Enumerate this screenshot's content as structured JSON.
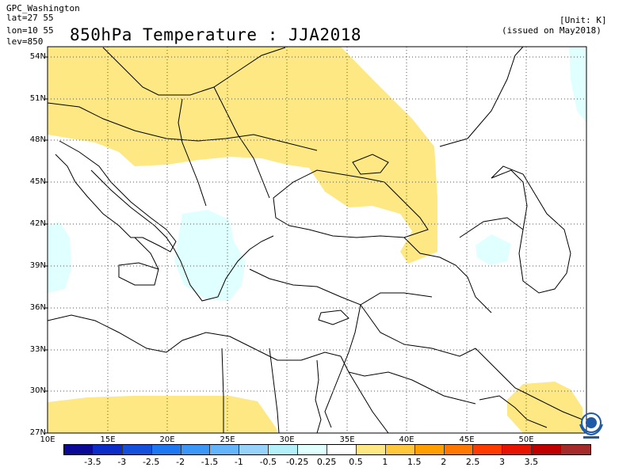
{
  "header": {
    "source": "GPC_Washington",
    "lat_range": "lat=27 55",
    "lon_range": "lon=10 55",
    "level": "lev=850",
    "unit": "[Unit: K]",
    "issued": "(issued on May2018)"
  },
  "title": "850hPa Temperature : JJA2018",
  "map": {
    "lat_ticks": [
      "54N",
      "51N",
      "48N",
      "45N",
      "42N",
      "39N",
      "36N",
      "33N",
      "30N",
      "27N"
    ],
    "lon_ticks": [
      "10E",
      "15E",
      "20E",
      "25E",
      "30E",
      "35E",
      "40E",
      "45E",
      "50E"
    ],
    "lat_extent": [
      27,
      55
    ],
    "lon_extent": [
      10,
      55
    ],
    "gridlines": "dotted",
    "shaded_regions": [
      {
        "category": "0.25 to 0.5",
        "color": "#fde883",
        "area": "Central/Eastern Europe to Caspian"
      },
      {
        "category": "0.25 to 0.5",
        "color": "#fde883",
        "area": "North Africa (Libya/Egypt)"
      },
      {
        "category": "0.25 to 0.5",
        "color": "#fde883",
        "area": "Persian Gulf"
      },
      {
        "category": "-0.5 to -0.25",
        "color": "#e0ffff",
        "area": "Greece / Aegean"
      },
      {
        "category": "-0.5 to -0.25",
        "color": "#e0ffff",
        "area": "Sardinia"
      },
      {
        "category": "-0.5 to -0.25",
        "color": "#e0ffff",
        "area": "Armenia"
      },
      {
        "category": "-0.5 to -0.25",
        "color": "#e0ffff",
        "area": "NE corner"
      }
    ]
  },
  "colorbar": {
    "colors": [
      "#0a0a96",
      "#0d2dc8",
      "#1450dc",
      "#1e78f0",
      "#3c96f5",
      "#64b4fa",
      "#96d2fa",
      "#b4f0fa",
      "#e0ffff",
      "#ffffff",
      "#fde883",
      "#ffc83c",
      "#ffa000",
      "#ff7800",
      "#ff3c00",
      "#e61400",
      "#c00000",
      "#a52a2a"
    ],
    "labels": [
      "-3.5",
      "-3",
      "-2.5",
      "-2",
      "-1.5",
      "-1",
      "-0.5",
      "-0.25",
      "0.25",
      "0.5",
      "1",
      "1.5",
      "2",
      "2.5",
      "3",
      "3.5"
    ]
  },
  "logo": "wmo-emblem-icon"
}
